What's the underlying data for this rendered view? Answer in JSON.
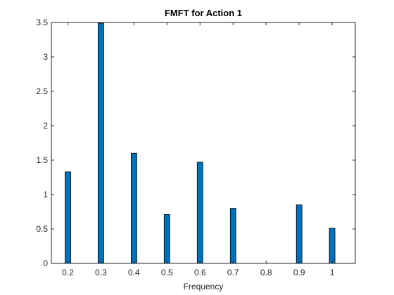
{
  "chart_data": {
    "type": "bar",
    "title": "FMFT for Action 1",
    "xlabel": "Frequency",
    "ylabel": "",
    "x": [
      0.2,
      0.3,
      0.4,
      0.5,
      0.6,
      0.7,
      0.9,
      1.0
    ],
    "values": [
      1.33,
      3.49,
      1.6,
      0.71,
      1.47,
      0.8,
      0.85,
      0.51
    ],
    "xlim": [
      0.15,
      1.07
    ],
    "ylim": [
      0,
      3.5
    ],
    "xticks": [
      "0.2",
      "0.3",
      "0.4",
      "0.5",
      "0.6",
      "0.7",
      "0.8",
      "0.9",
      "1"
    ],
    "yticks": [
      "0",
      "0.5",
      "1",
      "1.5",
      "2",
      "2.5",
      "3",
      "3.5"
    ],
    "grid": false,
    "bar_color": "#0072BD",
    "edge_color": "#000000",
    "axis_color": "#262626"
  }
}
